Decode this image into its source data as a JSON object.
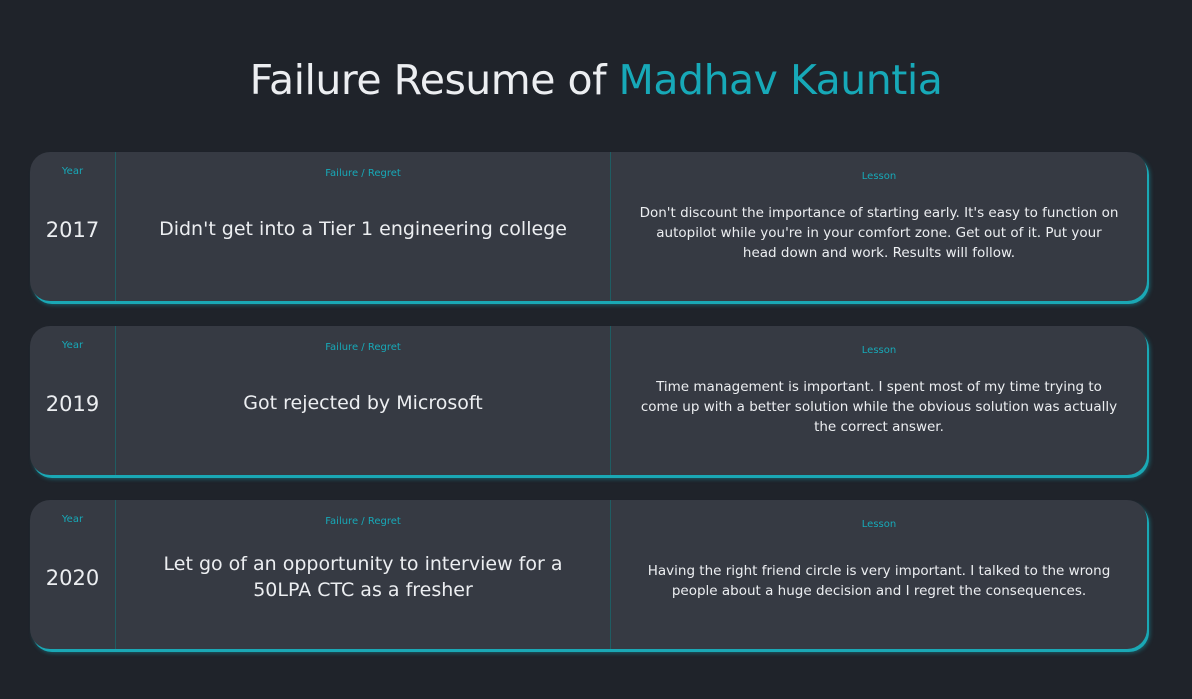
{
  "header": {
    "title_prefix": "Failure Resume of ",
    "title_name": "Madhav Kauntia"
  },
  "columns": {
    "year": "Year",
    "failure": "Failure / Regret",
    "lesson": "Lesson"
  },
  "entries": [
    {
      "year": "2017",
      "failure": "Didn't get into a Tier 1 engineering college",
      "lesson": "Don't discount the importance of starting early. It's easy to function on autopilot while you're in your comfort zone. Get out of it. Put your head down and work. Results will follow."
    },
    {
      "year": "2019",
      "failure": "Got rejected by Microsoft",
      "lesson": "Time management is important. I spent most of my time trying to come up with a better solution while the obvious solution was actually the correct answer."
    },
    {
      "year": "2020",
      "failure": "Let go of an opportunity to interview for a 50LPA CTC as a fresher",
      "lesson": "Having the right friend circle is very important. I talked to the wrong people about a huge decision and I regret the consequences."
    }
  ],
  "colors": {
    "background": "#1f232a",
    "card": "#363a43",
    "accent": "#17a9b8",
    "text": "#eceef1"
  }
}
